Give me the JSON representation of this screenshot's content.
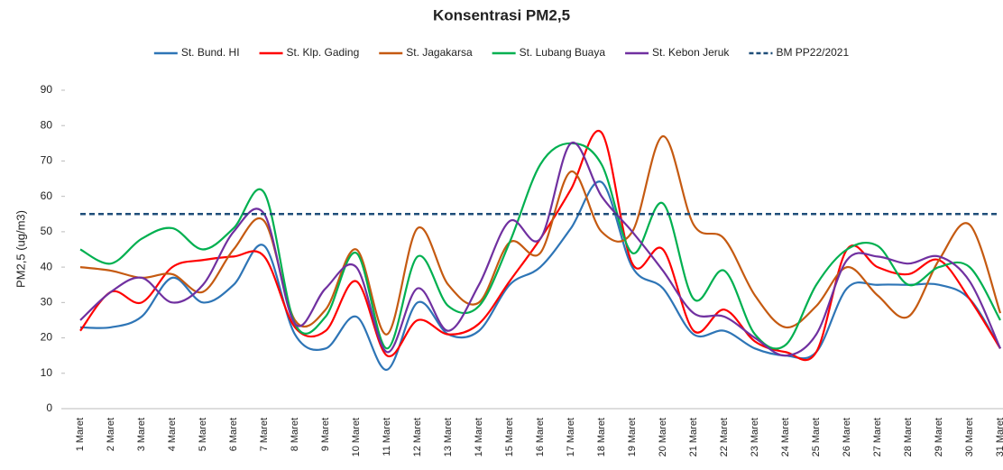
{
  "chart_data": {
    "type": "line",
    "title": "Konsentrasi PM2,5",
    "y_label": "PM2,5 (ug/m3)",
    "categories": [
      "1 Maret",
      "2 Maret",
      "3 Maret",
      "4 Maret",
      "5 Maret",
      "6 Maret",
      "7 Maret",
      "8 Maret",
      "9 Maret",
      "10 Maret",
      "11 Maret",
      "12 Maret",
      "13 Maret",
      "14 Maret",
      "15 Maret",
      "16 Maret",
      "17 Maret",
      "18 Maret",
      "19 Maret",
      "20 Maret",
      "21 Maret",
      "22 Maret",
      "23 Maret",
      "24 Maret",
      "25 Maret",
      "26 Maret",
      "27 Maret",
      "28 Maret",
      "29 Maret",
      "30 Maret",
      "31 Maret"
    ],
    "series": [
      {
        "name": "St. Bund. HI",
        "color": "#2e75b6",
        "values": [
          23,
          23,
          26,
          37,
          30,
          35,
          46,
          21,
          17,
          26,
          11,
          30,
          21,
          22,
          35,
          40,
          51,
          64,
          40,
          34,
          21,
          22,
          17,
          15,
          16,
          34,
          35,
          35,
          35,
          31,
          17
        ]
      },
      {
        "name": "St. Klp. Gading",
        "color": "#ff0000",
        "values": [
          22,
          33,
          30,
          40,
          42,
          43,
          43,
          23,
          22,
          36,
          15,
          25,
          21,
          24,
          36,
          48,
          62,
          78,
          41,
          45,
          22,
          28,
          19,
          16,
          16,
          45,
          40,
          38,
          42,
          31,
          17
        ]
      },
      {
        "name": "St. Jagakarsa",
        "color": "#c55a11",
        "values": [
          40,
          39,
          37,
          38,
          33,
          45,
          53,
          25,
          28,
          45,
          21,
          51,
          35,
          30,
          47,
          44,
          67,
          50,
          50,
          77,
          52,
          48,
          32,
          23,
          29,
          40,
          32,
          26,
          42,
          52,
          27
        ]
      },
      {
        "name": "St. Lubang Buaya",
        "color": "#00b050",
        "values": [
          45,
          41,
          48,
          51,
          45,
          51,
          61,
          24,
          26,
          44,
          17,
          43,
          29,
          29,
          47,
          69,
          75,
          69,
          44,
          58,
          31,
          39,
          21,
          18,
          35,
          45,
          46,
          35,
          40,
          40,
          25
        ]
      },
      {
        "name": "St. Kebon Jeruk",
        "color": "#7030a0",
        "values": [
          25,
          33,
          37,
          30,
          35,
          50,
          55,
          24,
          34,
          40,
          16,
          34,
          22,
          35,
          53,
          48,
          75,
          60,
          50,
          39,
          27,
          26,
          20,
          15,
          21,
          42,
          43,
          41,
          43,
          36,
          17
        ]
      },
      {
        "name": "BM PP22/2021",
        "color": "#1f4e79",
        "dashed": true,
        "values": [
          55,
          55,
          55,
          55,
          55,
          55,
          55,
          55,
          55,
          55,
          55,
          55,
          55,
          55,
          55,
          55,
          55,
          55,
          55,
          55,
          55,
          55,
          55,
          55,
          55,
          55,
          55,
          55,
          55,
          55,
          55
        ]
      }
    ],
    "ylim": [
      0,
      90
    ],
    "yticks": [
      0,
      10,
      20,
      30,
      40,
      50,
      60,
      70,
      80,
      90
    ],
    "legend": "top"
  }
}
